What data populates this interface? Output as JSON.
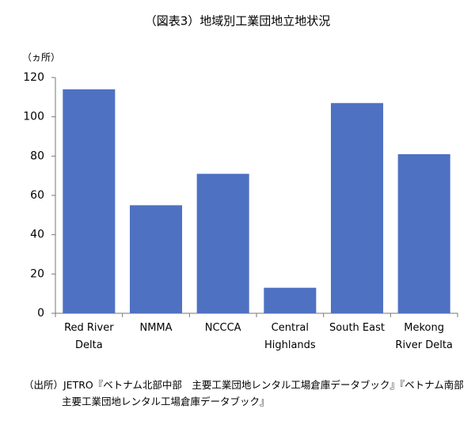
{
  "chart_data": {
    "type": "bar",
    "title": "（図表3）地域別工業団地立地状況",
    "y_label": "（ヵ所）",
    "categories": [
      "Red River\nDelta",
      "NMMA",
      "NCCCA",
      "Central\nHighlands",
      "South East",
      "Mekong\nRiver Delta"
    ],
    "values": [
      114,
      55,
      71,
      13,
      107,
      81
    ],
    "color": "#4f71c2",
    "ylim": [
      0,
      120
    ],
    "yticks": [
      0,
      20,
      40,
      60,
      80,
      100,
      120
    ],
    "grid": false,
    "note": "（出所）JETRO『ベトナム北部中部　主要工業団地レンタル工場倉庫データブック』『ベトナム南部\n主要工業団地レンタル工場倉庫データブック』"
  }
}
